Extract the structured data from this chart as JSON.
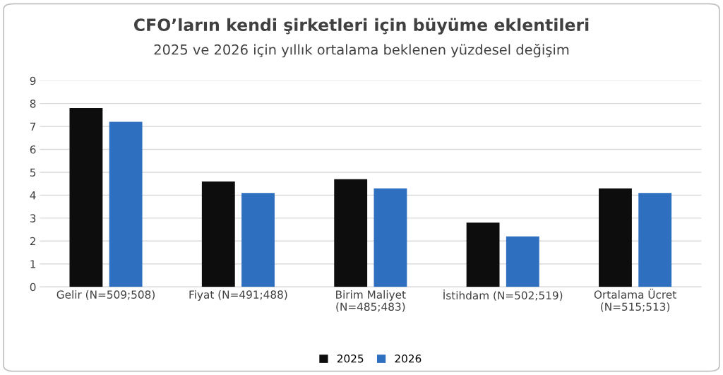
{
  "chart_data": {
    "type": "bar",
    "title": "CFO’ların kendi şirketleri için büyüme eklentileri",
    "subtitle": "2025 ve 2026 için yıllık ortalama beklenen yüzdesel değişim",
    "categories": [
      "Gelir (N=509;508)",
      "Fiyat (N=491;488)",
      "Birim Maliyet\n(N=485;483)",
      "İstihdam (N=502;519)",
      "Ortalama Ücret\n(N=515;513)"
    ],
    "series": [
      {
        "name": "2025",
        "color": "#0d0d0d",
        "values": [
          7.8,
          4.6,
          4.7,
          2.8,
          4.3
        ]
      },
      {
        "name": "2026",
        "color": "#2e6fbf",
        "values": [
          7.2,
          4.1,
          4.3,
          2.2,
          4.1
        ]
      }
    ],
    "ylim": [
      0,
      9
    ],
    "yticks": [
      0,
      1,
      2,
      3,
      4,
      5,
      6,
      7,
      8,
      9
    ],
    "grid": "y",
    "legend": "bottom"
  }
}
